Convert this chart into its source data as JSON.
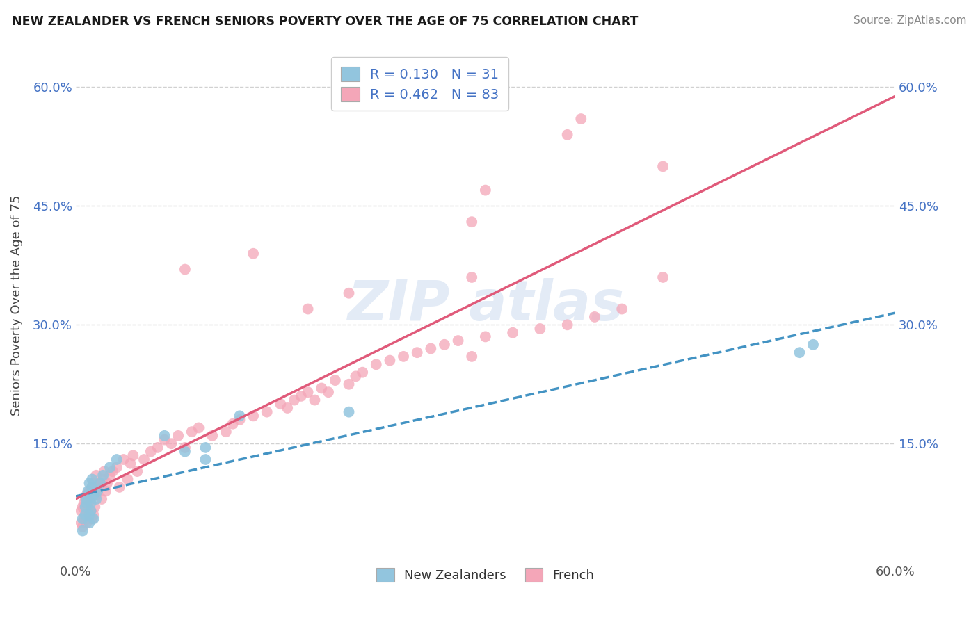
{
  "title": "NEW ZEALANDER VS FRENCH SENIORS POVERTY OVER THE AGE OF 75 CORRELATION CHART",
  "source": "Source: ZipAtlas.com",
  "ylabel": "Seniors Poverty Over the Age of 75",
  "xlim": [
    0.0,
    0.6
  ],
  "ylim": [
    0.0,
    0.65
  ],
  "x_ticks": [
    0.0,
    0.1,
    0.2,
    0.3,
    0.4,
    0.5,
    0.6
  ],
  "y_ticks": [
    0.0,
    0.15,
    0.3,
    0.45,
    0.6
  ],
  "nz_R": 0.13,
  "nz_N": 31,
  "fr_R": 0.462,
  "fr_N": 83,
  "nz_color": "#92c5de",
  "fr_color": "#f4a6b8",
  "nz_line_color": "#4393c3",
  "fr_line_color": "#e05a7a",
  "legend_text_color": "#4472c4",
  "background_color": "#ffffff",
  "nz_scatter_x": [
    0.005,
    0.005,
    0.007,
    0.007,
    0.008,
    0.008,
    0.009,
    0.009,
    0.01,
    0.01,
    0.01,
    0.011,
    0.011,
    0.012,
    0.012,
    0.013,
    0.013,
    0.015,
    0.016,
    0.018,
    0.02,
    0.025,
    0.03,
    0.065,
    0.08,
    0.095,
    0.095,
    0.12,
    0.2,
    0.53,
    0.54
  ],
  "nz_scatter_y": [
    0.04,
    0.055,
    0.06,
    0.07,
    0.075,
    0.08,
    0.085,
    0.09,
    0.05,
    0.06,
    0.1,
    0.065,
    0.075,
    0.095,
    0.105,
    0.055,
    0.085,
    0.08,
    0.09,
    0.1,
    0.11,
    0.12,
    0.13,
    0.16,
    0.14,
    0.13,
    0.145,
    0.185,
    0.19,
    0.265,
    0.275
  ],
  "fr_scatter_x": [
    0.004,
    0.004,
    0.005,
    0.005,
    0.006,
    0.006,
    0.007,
    0.007,
    0.008,
    0.008,
    0.008,
    0.009,
    0.009,
    0.01,
    0.01,
    0.011,
    0.011,
    0.012,
    0.012,
    0.013,
    0.013,
    0.014,
    0.015,
    0.015,
    0.016,
    0.017,
    0.018,
    0.019,
    0.02,
    0.021,
    0.022,
    0.023,
    0.025,
    0.027,
    0.03,
    0.032,
    0.035,
    0.038,
    0.04,
    0.042,
    0.045,
    0.05,
    0.055,
    0.06,
    0.065,
    0.07,
    0.075,
    0.08,
    0.085,
    0.09,
    0.1,
    0.11,
    0.115,
    0.12,
    0.13,
    0.14,
    0.15,
    0.155,
    0.16,
    0.165,
    0.17,
    0.175,
    0.18,
    0.185,
    0.19,
    0.2,
    0.205,
    0.21,
    0.22,
    0.23,
    0.24,
    0.25,
    0.26,
    0.27,
    0.28,
    0.29,
    0.3,
    0.32,
    0.34,
    0.36,
    0.38,
    0.4,
    0.43
  ],
  "fr_scatter_y": [
    0.05,
    0.065,
    0.045,
    0.07,
    0.055,
    0.075,
    0.06,
    0.08,
    0.05,
    0.065,
    0.085,
    0.055,
    0.075,
    0.06,
    0.09,
    0.065,
    0.08,
    0.055,
    0.095,
    0.06,
    0.1,
    0.07,
    0.085,
    0.11,
    0.09,
    0.095,
    0.1,
    0.08,
    0.105,
    0.115,
    0.09,
    0.1,
    0.11,
    0.115,
    0.12,
    0.095,
    0.13,
    0.105,
    0.125,
    0.135,
    0.115,
    0.13,
    0.14,
    0.145,
    0.155,
    0.15,
    0.16,
    0.145,
    0.165,
    0.17,
    0.16,
    0.165,
    0.175,
    0.18,
    0.185,
    0.19,
    0.2,
    0.195,
    0.205,
    0.21,
    0.215,
    0.205,
    0.22,
    0.215,
    0.23,
    0.225,
    0.235,
    0.24,
    0.25,
    0.255,
    0.26,
    0.265,
    0.27,
    0.275,
    0.28,
    0.26,
    0.285,
    0.29,
    0.295,
    0.3,
    0.31,
    0.32,
    0.36
  ],
  "fr_outliers_x": [
    0.3,
    0.36,
    0.29,
    0.37,
    0.43,
    0.29,
    0.2,
    0.08,
    0.13,
    0.17
  ],
  "fr_outliers_y": [
    0.47,
    0.54,
    0.43,
    0.56,
    0.5,
    0.36,
    0.34,
    0.37,
    0.39,
    0.32
  ]
}
